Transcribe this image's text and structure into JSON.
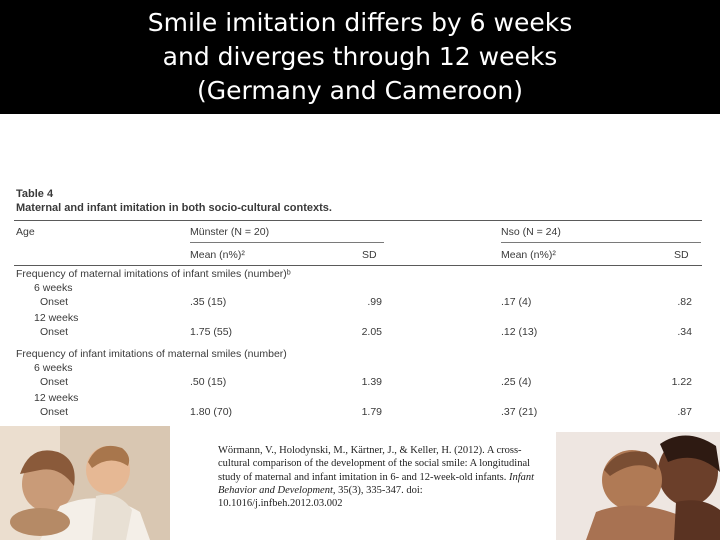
{
  "slide": {
    "title_lines": [
      "Smile imitation differs by 6 weeks",
      "and diverges through 12 weeks",
      "(Germany and Cameroon)"
    ],
    "header_bg": "#000000",
    "title_color": "#ffffff"
  },
  "table": {
    "label": "Table 4",
    "caption": "Maternal and infant imitation in both socio-cultural contexts.",
    "header": {
      "age": "Age",
      "group1": "Münster (N = 20)",
      "group2": "Nso (N = 24)",
      "mean1": "Mean (n%)²",
      "sd1": "SD",
      "mean2": "Mean (n%)²",
      "sd2": "SD"
    },
    "sections": [
      {
        "title": "Frequency of maternal imitations of infant smiles (number)ᵇ",
        "rows": [
          {
            "age": "6 weeks"
          },
          {
            "age": "Onset",
            "mean1": ".35 (15)",
            "sd1": ".99",
            "mean2": ".17 (4)",
            "sd2": ".82"
          },
          {
            "age": "12 weeks"
          },
          {
            "age": "Onset",
            "mean1": "1.75 (55)",
            "sd1": "2.05",
            "mean2": ".12 (13)",
            "sd2": ".34"
          }
        ]
      },
      {
        "title": "Frequency of infant imitations of maternal smiles (number)",
        "rows": [
          {
            "age": "6 weeks"
          },
          {
            "age": "Onset",
            "mean1": ".50 (15)",
            "sd1": "1.39",
            "mean2": ".25 (4)",
            "sd2": "1.22"
          },
          {
            "age": "12 weeks"
          },
          {
            "age": "Onset",
            "mean1": "1.80 (70)",
            "sd1": "1.79",
            "mean2": ".37 (21)",
            "sd2": ".87"
          }
        ]
      }
    ]
  },
  "citation": {
    "plain": "Wörmann, V., Holodynski, M., Kärtner, J., & Keller, H. (2012). A cross-cultural comparison of the development of the social smile: A longitudinal study of maternal and infant imitation in 6- and 12-week-old infants. ",
    "journal": "Infant Behavior and Development,",
    "rest": " 35(3), 335-347. doi: 10.1016/j.infbeh.2012.03.002"
  }
}
